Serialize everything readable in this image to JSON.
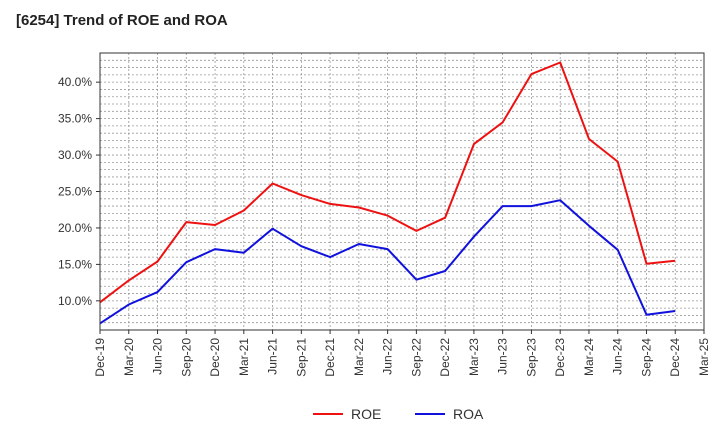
{
  "chart_data": {
    "type": "line",
    "title": "[6254]  Trend of ROE and ROA",
    "xlabel": "",
    "ylabel": "",
    "x": [
      "Dec-19",
      "Mar-20",
      "Jun-20",
      "Sep-20",
      "Dec-20",
      "Mar-21",
      "Jun-21",
      "Sep-21",
      "Dec-21",
      "Mar-22",
      "Jun-22",
      "Sep-22",
      "Dec-22",
      "Mar-23",
      "Jun-23",
      "Sep-23",
      "Dec-23",
      "Mar-24",
      "Jun-24",
      "Sep-24",
      "Dec-24",
      "Mar-25"
    ],
    "ylim": [
      6.0,
      44.0
    ],
    "yticks": [
      10,
      15,
      20,
      25,
      30,
      35,
      40
    ],
    "ytick_labels": [
      "10.0%",
      "15.0%",
      "20.0%",
      "25.0%",
      "30.0%",
      "35.0%",
      "40.0%"
    ],
    "grid": true,
    "legend_position": "bottom-center",
    "series": [
      {
        "name": "ROE",
        "color": "#ee1111",
        "values": [
          9.8,
          12.8,
          15.4,
          20.8,
          20.4,
          22.4,
          26.1,
          24.5,
          23.3,
          22.8,
          21.7,
          19.6,
          21.4,
          31.5,
          34.5,
          41.1,
          42.7,
          32.2,
          29.1,
          15.1,
          15.5,
          null
        ]
      },
      {
        "name": "ROA",
        "color": "#1111dd",
        "values": [
          6.9,
          9.5,
          11.2,
          15.3,
          17.1,
          16.6,
          19.9,
          17.5,
          16.0,
          17.8,
          17.1,
          12.9,
          14.1,
          18.8,
          23.0,
          23.0,
          23.8,
          20.3,
          17.0,
          8.1,
          8.6,
          null
        ]
      }
    ]
  }
}
